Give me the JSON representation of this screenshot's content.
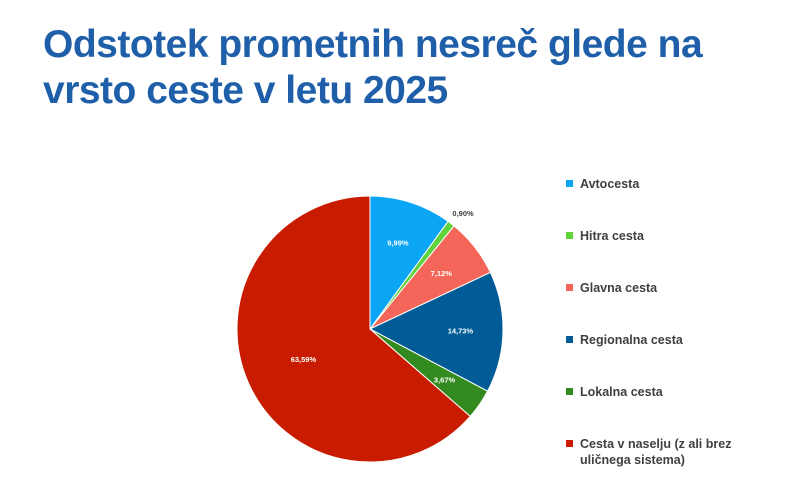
{
  "chart_data": {
    "type": "pie",
    "title": "Odstotek prometnih nesreč glede na vrsto ceste v letu 2025",
    "legend_position": "right",
    "slices": [
      {
        "label": "Avtocesta",
        "value": 9.99,
        "value_label": "9,99%",
        "color": "#0aa5f5",
        "label_color": "#ffffff"
      },
      {
        "label": "Hitra cesta",
        "value": 0.9,
        "value_label": "0,90%",
        "color": "#5fd33c",
        "label_color": "#404040"
      },
      {
        "label": "Glavna cesta",
        "value": 7.12,
        "value_label": "7,12%",
        "color": "#f4665a",
        "label_color": "#ffffff"
      },
      {
        "label": "Regionalna cesta",
        "value": 14.73,
        "value_label": "14,73%",
        "color": "#005b96",
        "label_color": "#ffffff"
      },
      {
        "label": "Lokalna cesta",
        "value": 3.67,
        "value_label": "3,67%",
        "color": "#338a1f",
        "label_color": "#ffffff"
      },
      {
        "label": "Cesta v naselju (z ali brez uličnega sistema)",
        "value": 63.59,
        "value_label": "63,59%",
        "color": "#c81b00",
        "label_color": "#ffffff"
      }
    ]
  }
}
